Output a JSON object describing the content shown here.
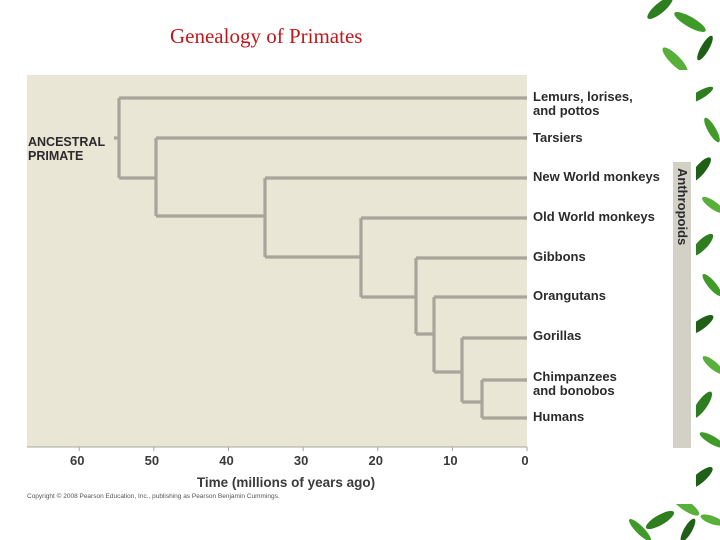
{
  "slide": {
    "title": "Genealogy of Primates"
  },
  "tree": {
    "root_label": [
      "ANCESTRAL",
      "PRIMATE"
    ],
    "taxa": [
      {
        "lines": [
          "Lemurs, lorises,",
          "and pottos"
        ]
      },
      {
        "lines": [
          "Tarsiers"
        ]
      },
      {
        "lines": [
          "New World monkeys"
        ]
      },
      {
        "lines": [
          "Old World monkeys"
        ]
      },
      {
        "lines": [
          "Gibbons"
        ]
      },
      {
        "lines": [
          "Orangutans"
        ]
      },
      {
        "lines": [
          "Gorillas"
        ]
      },
      {
        "lines": [
          "Chimpanzees",
          "and bonobos"
        ]
      },
      {
        "lines": [
          "Humans"
        ]
      }
    ],
    "divergence_times_mya": [
      55,
      50,
      35,
      22,
      15,
      12,
      8.5,
      6
    ],
    "bracket_label": "Anthropoids",
    "axis": {
      "title": "Time (millions of years ago)",
      "ticks": [
        "60",
        "50",
        "40",
        "30",
        "20",
        "10",
        "0"
      ],
      "range": [
        67,
        0
      ]
    },
    "copyright": "Copyright © 2008 Pearson Education, Inc., publishing as Pearson Benjamin Cummings."
  },
  "colors": {
    "title": "#c0181c",
    "plot_background": "#e9e6d6",
    "branches": "#a8a59a",
    "leaves": "#2e7d1f"
  }
}
